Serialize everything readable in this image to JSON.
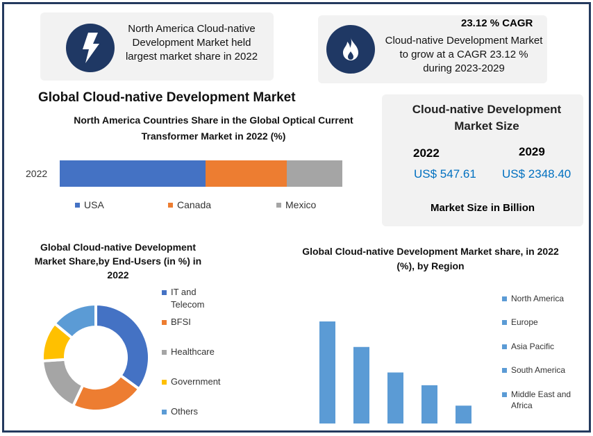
{
  "cards": {
    "left_text": "North America Cloud-native Development Market held largest market share in 2022",
    "right_headline": "23.12 % CAGR",
    "right_text": "Cloud-native Development Market to grow at a CAGR 23.12 % during 2023-2029"
  },
  "main_title": "Global Cloud-native  Development Market",
  "market_size": {
    "title": "Cloud-native Development Market Size",
    "year1": "2022",
    "value1": "US$ 547.61",
    "year2": "2029",
    "value2": "US$ 2348.40",
    "footer": "Market Size in Billion"
  },
  "colors": {
    "navy": "#1f3864",
    "blue": "#4472c4",
    "orange": "#ed7d31",
    "gray": "#a5a5a5",
    "yellow": "#ffc000",
    "lightblue": "#5b9bd5",
    "value_blue": "#0070c0"
  },
  "chart_data": [
    {
      "type": "bar",
      "stacked": true,
      "orientation": "horizontal",
      "title": "North America Countries Share in the Global Optical Current Transformer Market in 2022 (%)",
      "categories": [
        "2022"
      ],
      "series": [
        {
          "name": "USA",
          "values": [
            51.6
          ],
          "color": "#4472c4"
        },
        {
          "name": "Canada",
          "values": [
            28.7
          ],
          "color": "#ed7d31"
        },
        {
          "name": "Mexico",
          "values": [
            19.7
          ],
          "color": "#a5a5a5"
        }
      ],
      "legend": "bottom"
    },
    {
      "type": "pie",
      "donut": true,
      "title": "Global Cloud-native Development Market Share,by End-Users (in %) in 2022",
      "labels": [
        "IT and Telecom",
        "BFSI",
        "Healthcare",
        "Government",
        "Others"
      ],
      "values": [
        35,
        22,
        17,
        12,
        14
      ],
      "colors": [
        "#4472c4",
        "#ed7d31",
        "#a5a5a5",
        "#ffc000",
        "#5b9bd5"
      ],
      "legend": "right"
    },
    {
      "type": "bar",
      "title": "Global Cloud-native Development Market share, in 2022 (%), by Region",
      "categories": [
        "North America",
        "Europe",
        "Asia Pacific",
        "South America",
        "Middle East and Africa"
      ],
      "values": [
        40,
        30,
        20,
        15,
        7
      ],
      "ylim": [
        0,
        40
      ],
      "color": "#5b9bd5",
      "legend": "right"
    }
  ]
}
